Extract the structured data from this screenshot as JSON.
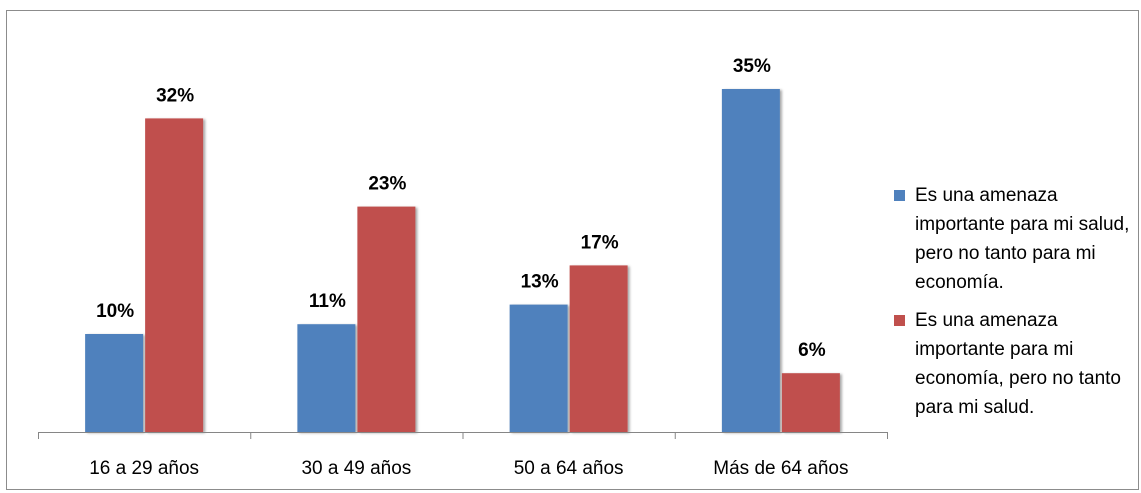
{
  "chart_data": {
    "type": "bar",
    "categories": [
      "16 a 29 años",
      "30 a 49 años",
      "50 a 64 años",
      "Más de 64 años"
    ],
    "series": [
      {
        "name": "Es una amenaza importante para mi salud, pero no tanto para mi economía.",
        "values": [
          10,
          11,
          13,
          35
        ],
        "labels": [
          "10%",
          "11%",
          "13%",
          "35%"
        ],
        "color": "#4f81bd"
      },
      {
        "name": "Es una amenaza importante para mi economía, pero no tanto para mi salud.",
        "values": [
          32,
          23,
          17,
          6
        ],
        "labels": [
          "32%",
          "23%",
          "17%",
          "6%"
        ],
        "color": "#c0504d"
      }
    ],
    "ylim": [
      0,
      35
    ],
    "grid": false,
    "legend_position": "right"
  }
}
